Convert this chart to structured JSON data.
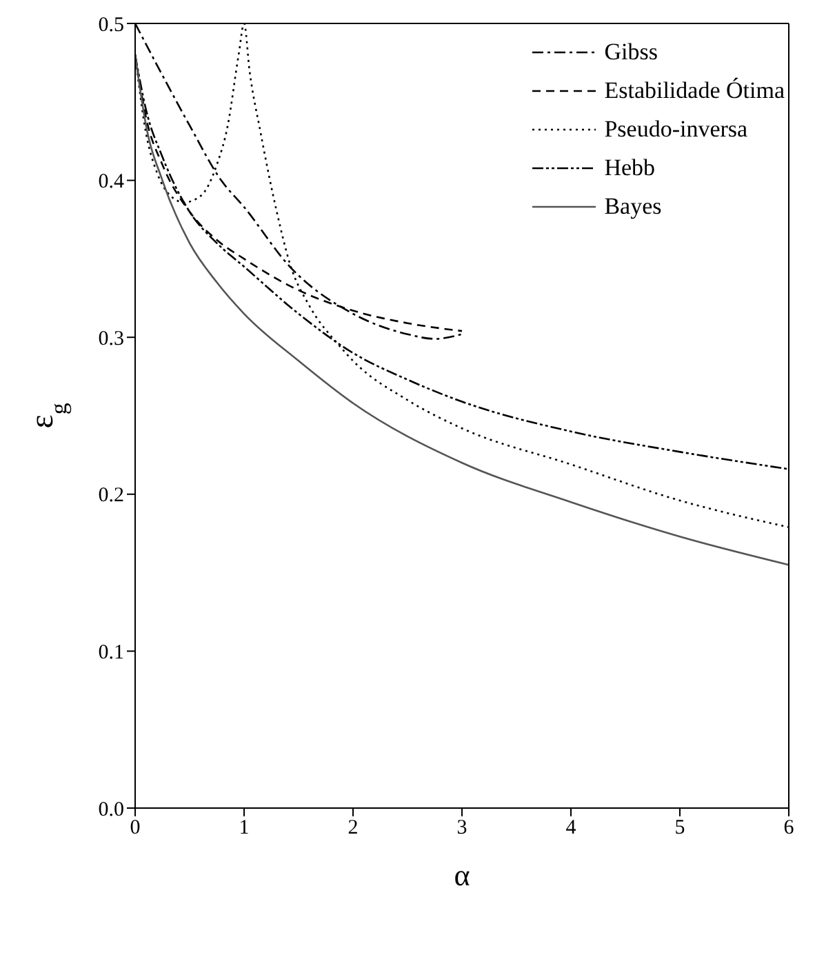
{
  "chart_data": {
    "type": "line",
    "xlabel": "α",
    "ylabel": "ε$_{g}$",
    "xlim": [
      0,
      6
    ],
    "xticks": [
      0,
      1,
      2,
      3,
      4,
      5,
      6
    ],
    "ylim": [
      0,
      0.5
    ],
    "yticks": [
      {
        "value": 0,
        "label": "0.0"
      },
      0.1,
      0.2,
      0.3,
      0.4,
      0.5
    ],
    "legend": "top right",
    "marker": "none",
    "series": [
      {
        "name": "Gibss",
        "color": "#000000",
        "line_style": "dashdot",
        "x": [
          0,
          0.25,
          0.5,
          0.79,
          1,
          1.42,
          2,
          2.5,
          2.75,
          3
        ],
        "values": [
          0.5,
          0.467,
          0.435,
          0.4,
          0.383,
          0.345,
          0.315,
          0.302,
          0.299,
          0.302
        ]
      },
      {
        "name": "Estabilidade Ótima",
        "color": "#000000",
        "line_style": "dashed",
        "x": [
          0,
          0.1,
          0.25,
          0.5,
          0.75,
          1,
          1.5,
          2,
          2.5,
          3
        ],
        "values": [
          0.48,
          0.44,
          0.41,
          0.38,
          0.362,
          0.35,
          0.33,
          0.317,
          0.309,
          0.304
        ]
      },
      {
        "name": "Pseudo-inversa",
        "color": "#000000",
        "line_style": "dotted",
        "x": [
          0,
          0.1,
          0.2,
          0.3,
          0.45,
          0.6,
          0.75,
          0.85,
          0.95,
          1,
          1.05,
          1.15,
          1.3,
          1.42,
          1.6,
          1.87,
          2,
          2.5,
          3,
          4,
          5,
          6
        ],
        "values": [
          0.48,
          0.43,
          0.405,
          0.392,
          0.386,
          0.39,
          0.41,
          0.435,
          0.48,
          0.5,
          0.47,
          0.431,
          0.38,
          0.347,
          0.32,
          0.295,
          0.285,
          0.26,
          0.242,
          0.219,
          0.196,
          0.179
        ]
      },
      {
        "name": "Hebb",
        "color": "#000000",
        "line_style": "dashdotdot",
        "x": [
          0,
          0.1,
          0.25,
          0.5,
          0.75,
          1,
          1.5,
          2,
          2.5,
          3,
          4,
          5,
          6
        ],
        "values": [
          0.48,
          0.445,
          0.415,
          0.38,
          0.36,
          0.345,
          0.315,
          0.29,
          0.273,
          0.259,
          0.24,
          0.227,
          0.216
        ]
      },
      {
        "name": "Bayes",
        "color": "#555555",
        "line_style": "solid",
        "x": [
          0,
          0.1,
          0.25,
          0.5,
          0.75,
          1,
          1.5,
          2,
          3,
          4,
          5,
          6
        ],
        "values": [
          0.48,
          0.435,
          0.4,
          0.36,
          0.335,
          0.315,
          0.285,
          0.258,
          0.22,
          0.195,
          0.173,
          0.155
        ]
      }
    ]
  }
}
